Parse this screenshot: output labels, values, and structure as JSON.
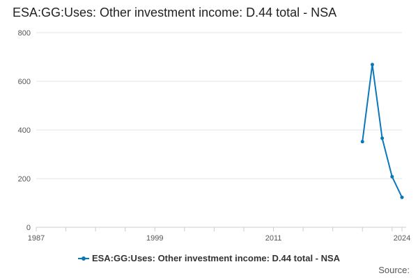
{
  "chart_data": {
    "type": "line",
    "title": "ESA:GG:Uses: Other investment income: D.44 total - NSA",
    "xlabel": "",
    "ylabel": "",
    "xlim": [
      1987,
      2024
    ],
    "ylim": [
      0,
      800
    ],
    "y_ticks": [
      0,
      200,
      400,
      600,
      800
    ],
    "x_ticks": [
      1987,
      1999,
      2011,
      2024
    ],
    "grid": true,
    "legend": "bottom",
    "series": [
      {
        "name": "ESA:GG:Uses: Other investment income: D.44 total - NSA",
        "color": "#0a77bb",
        "x": [
          2020,
          2021,
          2022,
          2023,
          2024
        ],
        "values": [
          352,
          669,
          366,
          208,
          123
        ]
      }
    ]
  },
  "footer": {
    "source_label": "Source:"
  }
}
